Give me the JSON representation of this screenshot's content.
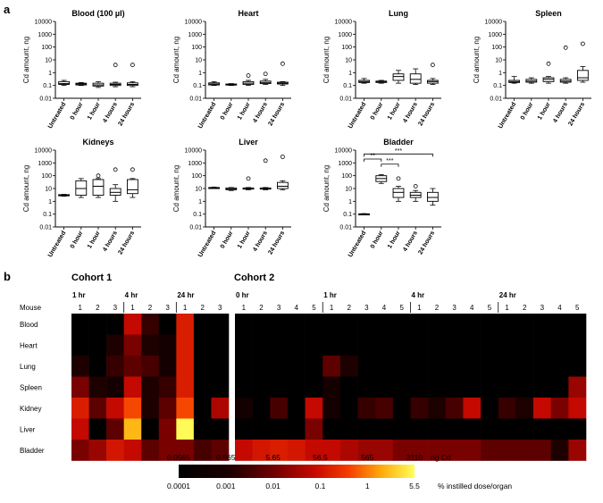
{
  "panel_a_label": "a",
  "panel_b_label": "b",
  "colors": {
    "axis": "#000000",
    "heat_low": "#000000",
    "heat_mid": "#c80000",
    "heat_high": "#ffff60",
    "divider": "#ffffff"
  },
  "chart_data": [
    {
      "type": "box",
      "title": "Blood (100 µl)",
      "ylabel": "Cd amount, ng",
      "yscale": "log",
      "ylim": [
        0.01,
        10000
      ],
      "yticks": [
        "10000",
        "1000",
        "100",
        "10",
        "1",
        "0.1",
        "0.01"
      ],
      "categories": [
        "Untreated",
        "0 hour",
        "1 hour",
        "4 hours",
        "24 hours"
      ],
      "boxes": [
        {
          "min": 0.1,
          "q1": 0.12,
          "median": 0.14,
          "q3": 0.2,
          "max": 0.25
        },
        {
          "min": 0.1,
          "q1": 0.11,
          "median": 0.13,
          "q3": 0.15,
          "max": 0.17
        },
        {
          "min": 0.07,
          "q1": 0.09,
          "median": 0.11,
          "q3": 0.15,
          "max": 0.2
        },
        {
          "min": 0.08,
          "q1": 0.1,
          "median": 0.12,
          "q3": 0.15,
          "max": 0.18
        },
        {
          "min": 0.08,
          "q1": 0.1,
          "median": 0.12,
          "q3": 0.16,
          "max": 0.2
        }
      ],
      "outliers": [
        {
          "cat": 3,
          "value": 4
        },
        {
          "cat": 4,
          "value": 4
        }
      ],
      "brackets": []
    },
    {
      "type": "box",
      "title": "Heart",
      "ylabel": "Cd amount, ng",
      "yscale": "log",
      "ylim": [
        0.01,
        10000
      ],
      "yticks": [
        "10000",
        "1000",
        "100",
        "10",
        "1",
        "0.1",
        "0.01"
      ],
      "categories": [
        "Untreated",
        "0 hour",
        "1 hour",
        "4 hours",
        "24 hours"
      ],
      "boxes": [
        {
          "min": 0.1,
          "q1": 0.11,
          "median": 0.13,
          "q3": 0.16,
          "max": 0.2
        },
        {
          "min": 0.1,
          "q1": 0.11,
          "median": 0.12,
          "q3": 0.13,
          "max": 0.14
        },
        {
          "min": 0.1,
          "q1": 0.12,
          "median": 0.15,
          "q3": 0.2,
          "max": 0.25
        },
        {
          "min": 0.12,
          "q1": 0.14,
          "median": 0.17,
          "q3": 0.22,
          "max": 0.3
        },
        {
          "min": 0.1,
          "q1": 0.13,
          "median": 0.15,
          "q3": 0.18,
          "max": 0.2
        }
      ],
      "outliers": [
        {
          "cat": 2,
          "value": 0.6
        },
        {
          "cat": 3,
          "value": 0.8
        },
        {
          "cat": 4,
          "value": 5
        }
      ],
      "brackets": []
    },
    {
      "type": "box",
      "title": "Lung",
      "ylabel": "Cd amount, ng",
      "yscale": "log",
      "ylim": [
        0.01,
        10000
      ],
      "yticks": [
        "10000",
        "1000",
        "100",
        "10",
        "1",
        "0.1",
        "0.01"
      ],
      "categories": [
        "Untreated",
        "0 hour",
        "1 hour",
        "4 hours",
        "24 hours"
      ],
      "boxes": [
        {
          "min": 0.15,
          "q1": 0.17,
          "median": 0.2,
          "q3": 0.25,
          "max": 0.35
        },
        {
          "min": 0.15,
          "q1": 0.17,
          "median": 0.19,
          "q3": 0.22,
          "max": 0.25
        },
        {
          "min": 0.15,
          "q1": 0.25,
          "median": 0.5,
          "q3": 0.8,
          "max": 1.5
        },
        {
          "min": 0.12,
          "q1": 0.15,
          "median": 0.3,
          "q3": 0.8,
          "max": 2
        },
        {
          "min": 0.12,
          "q1": 0.15,
          "median": 0.2,
          "q3": 0.25,
          "max": 0.35
        }
      ],
      "outliers": [
        {
          "cat": 4,
          "value": 4
        }
      ],
      "brackets": []
    },
    {
      "type": "box",
      "title": "Spleen",
      "ylabel": "Cd amount, ng",
      "yscale": "log",
      "ylim": [
        0.01,
        10000
      ],
      "yticks": [
        "10000",
        "1000",
        "100",
        "10",
        "1",
        "0.1",
        "0.01"
      ],
      "categories": [
        "Untreated",
        "0 hour",
        "1 hour",
        "4 hours",
        "24 hours"
      ],
      "boxes": [
        {
          "min": 0.15,
          "q1": 0.17,
          "median": 0.2,
          "q3": 0.25,
          "max": 0.5
        },
        {
          "min": 0.15,
          "q1": 0.18,
          "median": 0.22,
          "q3": 0.3,
          "max": 0.4
        },
        {
          "min": 0.15,
          "q1": 0.2,
          "median": 0.3,
          "q3": 0.4,
          "max": 0.5
        },
        {
          "min": 0.15,
          "q1": 0.18,
          "median": 0.22,
          "q3": 0.3,
          "max": 0.4
        },
        {
          "min": 0.18,
          "q1": 0.25,
          "median": 0.4,
          "q3": 1.5,
          "max": 3
        }
      ],
      "outliers": [
        {
          "cat": 2,
          "value": 5
        },
        {
          "cat": 3,
          "value": 90
        },
        {
          "cat": 4,
          "value": 180
        }
      ],
      "brackets": []
    },
    {
      "type": "box",
      "title": "Kidneys",
      "ylabel": "Cd amount, ng",
      "yscale": "log",
      "ylim": [
        0.01,
        10000
      ],
      "yticks": [
        "10000",
        "1000",
        "100",
        "10",
        "1",
        "0.1",
        "0.01"
      ],
      "categories": [
        "Untreated",
        "0 hour",
        "1 hour",
        "4 hours",
        "24 hours"
      ],
      "boxes": [
        {
          "min": 2.5,
          "q1": 2.7,
          "median": 3,
          "q3": 3.3,
          "max": 3.5
        },
        {
          "min": 2,
          "q1": 3,
          "median": 10,
          "q3": 40,
          "max": 60
        },
        {
          "min": 2,
          "q1": 3,
          "median": 15,
          "q3": 50,
          "max": 60
        },
        {
          "min": 1,
          "q1": 3,
          "median": 5,
          "q3": 10,
          "max": 20
        },
        {
          "min": 2,
          "q1": 4,
          "median": 8,
          "q3": 50,
          "max": 60
        }
      ],
      "outliers": [
        {
          "cat": 2,
          "value": 100
        },
        {
          "cat": 3,
          "value": 300
        },
        {
          "cat": 4,
          "value": 300
        }
      ],
      "brackets": []
    },
    {
      "type": "box",
      "title": "Liver",
      "ylabel": "Cd amount, ng",
      "yscale": "log",
      "ylim": [
        0.01,
        10000
      ],
      "yticks": [
        "10000",
        "1000",
        "100",
        "10",
        "1",
        "0.1",
        "0.01"
      ],
      "categories": [
        "Untreated",
        "0 hour",
        "1 hour",
        "4 hours",
        "24 hours"
      ],
      "boxes": [
        {
          "min": 10,
          "q1": 10.5,
          "median": 11,
          "q3": 12,
          "max": 13
        },
        {
          "min": 7,
          "q1": 8,
          "median": 9,
          "q3": 11,
          "max": 12
        },
        {
          "min": 8,
          "q1": 9,
          "median": 10,
          "q3": 11,
          "max": 12
        },
        {
          "min": 8,
          "q1": 9,
          "median": 10,
          "q3": 11,
          "max": 12
        },
        {
          "min": 8,
          "q1": 10,
          "median": 15,
          "q3": 30,
          "max": 40
        }
      ],
      "outliers": [
        {
          "cat": 2,
          "value": 60
        },
        {
          "cat": 3,
          "value": 1500
        },
        {
          "cat": 4,
          "value": 3000
        }
      ],
      "brackets": []
    },
    {
      "type": "box",
      "title": "Bladder",
      "ylabel": "Cd amount, ng",
      "yscale": "log",
      "ylim": [
        0.01,
        10000
      ],
      "yticks": [
        "10000",
        "1000",
        "100",
        "10",
        "1",
        "0.1",
        "0.01"
      ],
      "categories": [
        "Untreated",
        "0 hour",
        "1 hour",
        "4 hours",
        "24 hours"
      ],
      "boxes": [
        {
          "min": 0.09,
          "q1": 0.095,
          "median": 0.1,
          "q3": 0.105,
          "max": 0.11
        },
        {
          "min": 25,
          "q1": 35,
          "median": 60,
          "q3": 100,
          "max": 120
        },
        {
          "min": 1,
          "q1": 2,
          "median": 5,
          "q3": 10,
          "max": 15
        },
        {
          "min": 1,
          "q1": 2,
          "median": 3,
          "q3": 5,
          "max": 7
        },
        {
          "min": 0.5,
          "q1": 1,
          "median": 2,
          "q3": 5,
          "max": 10
        }
      ],
      "outliers": [
        {
          "cat": 2,
          "value": 60
        },
        {
          "cat": 3,
          "value": 15
        }
      ],
      "brackets": [
        {
          "from": 0,
          "to": 1,
          "value": 2000,
          "label": "**"
        },
        {
          "from": 0,
          "to": 4,
          "value": 5000,
          "label": "***"
        },
        {
          "from": 1,
          "to": 2,
          "value": 800,
          "label": "***"
        }
      ]
    },
    {
      "type": "heatmap",
      "cohorts": [
        "Cohort 1",
        "Cohort 2"
      ],
      "row_header": "Mouse",
      "rows": [
        "Blood",
        "Heart",
        "Lung",
        "Spleen",
        "Kidney",
        "Liver",
        "Bladder"
      ],
      "groups": [
        {
          "cohort": 0,
          "label": "1 hr",
          "mice": [
            "1",
            "2",
            "3"
          ]
        },
        {
          "cohort": 0,
          "label": "4 hr",
          "mice": [
            "1",
            "2",
            "3"
          ]
        },
        {
          "cohort": 0,
          "label": "24 hr",
          "mice": [
            "1",
            "2",
            "3"
          ]
        },
        {
          "cohort": 1,
          "label": "0 hr",
          "mice": [
            "1",
            "2",
            "3",
            "4",
            "5"
          ]
        },
        {
          "cohort": 1,
          "label": "1 hr",
          "mice": [
            "1",
            "2",
            "3",
            "4",
            "5"
          ]
        },
        {
          "cohort": 1,
          "label": "4 hr",
          "mice": [
            "1",
            "2",
            "3",
            "4",
            "5"
          ]
        },
        {
          "cohort": 1,
          "label": "24 hr",
          "mice": [
            "1",
            "2",
            "3",
            "4",
            "5"
          ]
        }
      ],
      "values": [
        [
          0.0001,
          0.0001,
          0.0001,
          0.05,
          0.002,
          0.0001,
          0.1,
          0.0001,
          0.0001,
          0.0001,
          0.0001,
          0.0001,
          0.0001,
          0.0001,
          0.0001,
          0.0001,
          0.0001,
          0.0001,
          0.0001,
          0.0001,
          0.0001,
          0.0001,
          0.0001,
          0.0001,
          0.0001,
          0.0001,
          0.0001,
          0.0001,
          0.0001
        ],
        [
          0.0001,
          0.0001,
          0.001,
          0.01,
          0.001,
          0.0005,
          0.1,
          0.0001,
          0.0001,
          0.0001,
          0.0001,
          0.0001,
          0.0001,
          0.0001,
          0.0001,
          0.0001,
          0.0001,
          0.0001,
          0.0001,
          0.0001,
          0.0001,
          0.0001,
          0.0001,
          0.0001,
          0.0001,
          0.0001,
          0.0001,
          0.0001,
          0.0001
        ],
        [
          0.001,
          0.0001,
          0.002,
          0.005,
          0.003,
          0.0005,
          0.1,
          0.0001,
          0.0001,
          0.0001,
          0.0001,
          0.0001,
          0.0001,
          0.0001,
          0.005,
          0.001,
          0.0001,
          0.0001,
          0.0001,
          0.0001,
          0.0001,
          0.0001,
          0.0001,
          0.0001,
          0.0001,
          0.0001,
          0.0001,
          0.0001,
          0.0001
        ],
        [
          0.01,
          0.001,
          0.0005,
          0.05,
          0.001,
          0.002,
          0.1,
          0.0001,
          0.0001,
          0.0001,
          0.0001,
          0.0001,
          0.0001,
          0.0001,
          0.0005,
          0.0001,
          0.0001,
          0.0001,
          0.0001,
          0.0001,
          0.0001,
          0.0001,
          0.0001,
          0.0001,
          0.0001,
          0.0001,
          0.0001,
          0.0001,
          0.02
        ],
        [
          0.1,
          0.005,
          0.05,
          0.3,
          0.001,
          0.005,
          0.3,
          0.0001,
          0.03,
          0.0005,
          0.0001,
          0.003,
          0.0001,
          0.05,
          0.0005,
          0.0001,
          0.002,
          0.003,
          0.0001,
          0.002,
          0.001,
          0.003,
          0.05,
          0.0001,
          0.002,
          0.001,
          0.05,
          0.01,
          0.05
        ],
        [
          0.05,
          0.0001,
          0.005,
          1.5,
          0.0001,
          0.01,
          5,
          0.0001,
          0.0001,
          0.0001,
          0.0001,
          0.0001,
          0.0001,
          0.01,
          0.0001,
          0.0001,
          0.0001,
          0.0001,
          0.0001,
          0.0001,
          0.0001,
          0.0001,
          0.0001,
          0.0001,
          0.0001,
          0.0001,
          0.0001,
          0.0001,
          0.0001
        ],
        [
          0.01,
          0.02,
          0.08,
          0.05,
          0.005,
          0.01,
          0.01,
          0.003,
          0.005,
          0.05,
          0.08,
          0.1,
          0.08,
          0.05,
          0.05,
          0.03,
          0.02,
          0.02,
          0.01,
          0.01,
          0.01,
          0.01,
          0.01,
          0.005,
          0.005,
          0.005,
          0.005,
          0.001,
          0.02
        ]
      ],
      "colorbar_top_labels": [
        "0.0565",
        "0.565",
        "5.65",
        "56.5",
        "565",
        "3110"
      ],
      "colorbar_top_unit": "ng Cd",
      "colorbar_bottom_labels": [
        "0.0001",
        "0.001",
        "0.01",
        "0.1",
        "1",
        "5.5"
      ],
      "colorbar_bottom_unit": "% instilled dose/organ",
      "color_range": [
        0.0001,
        5.5
      ]
    }
  ]
}
